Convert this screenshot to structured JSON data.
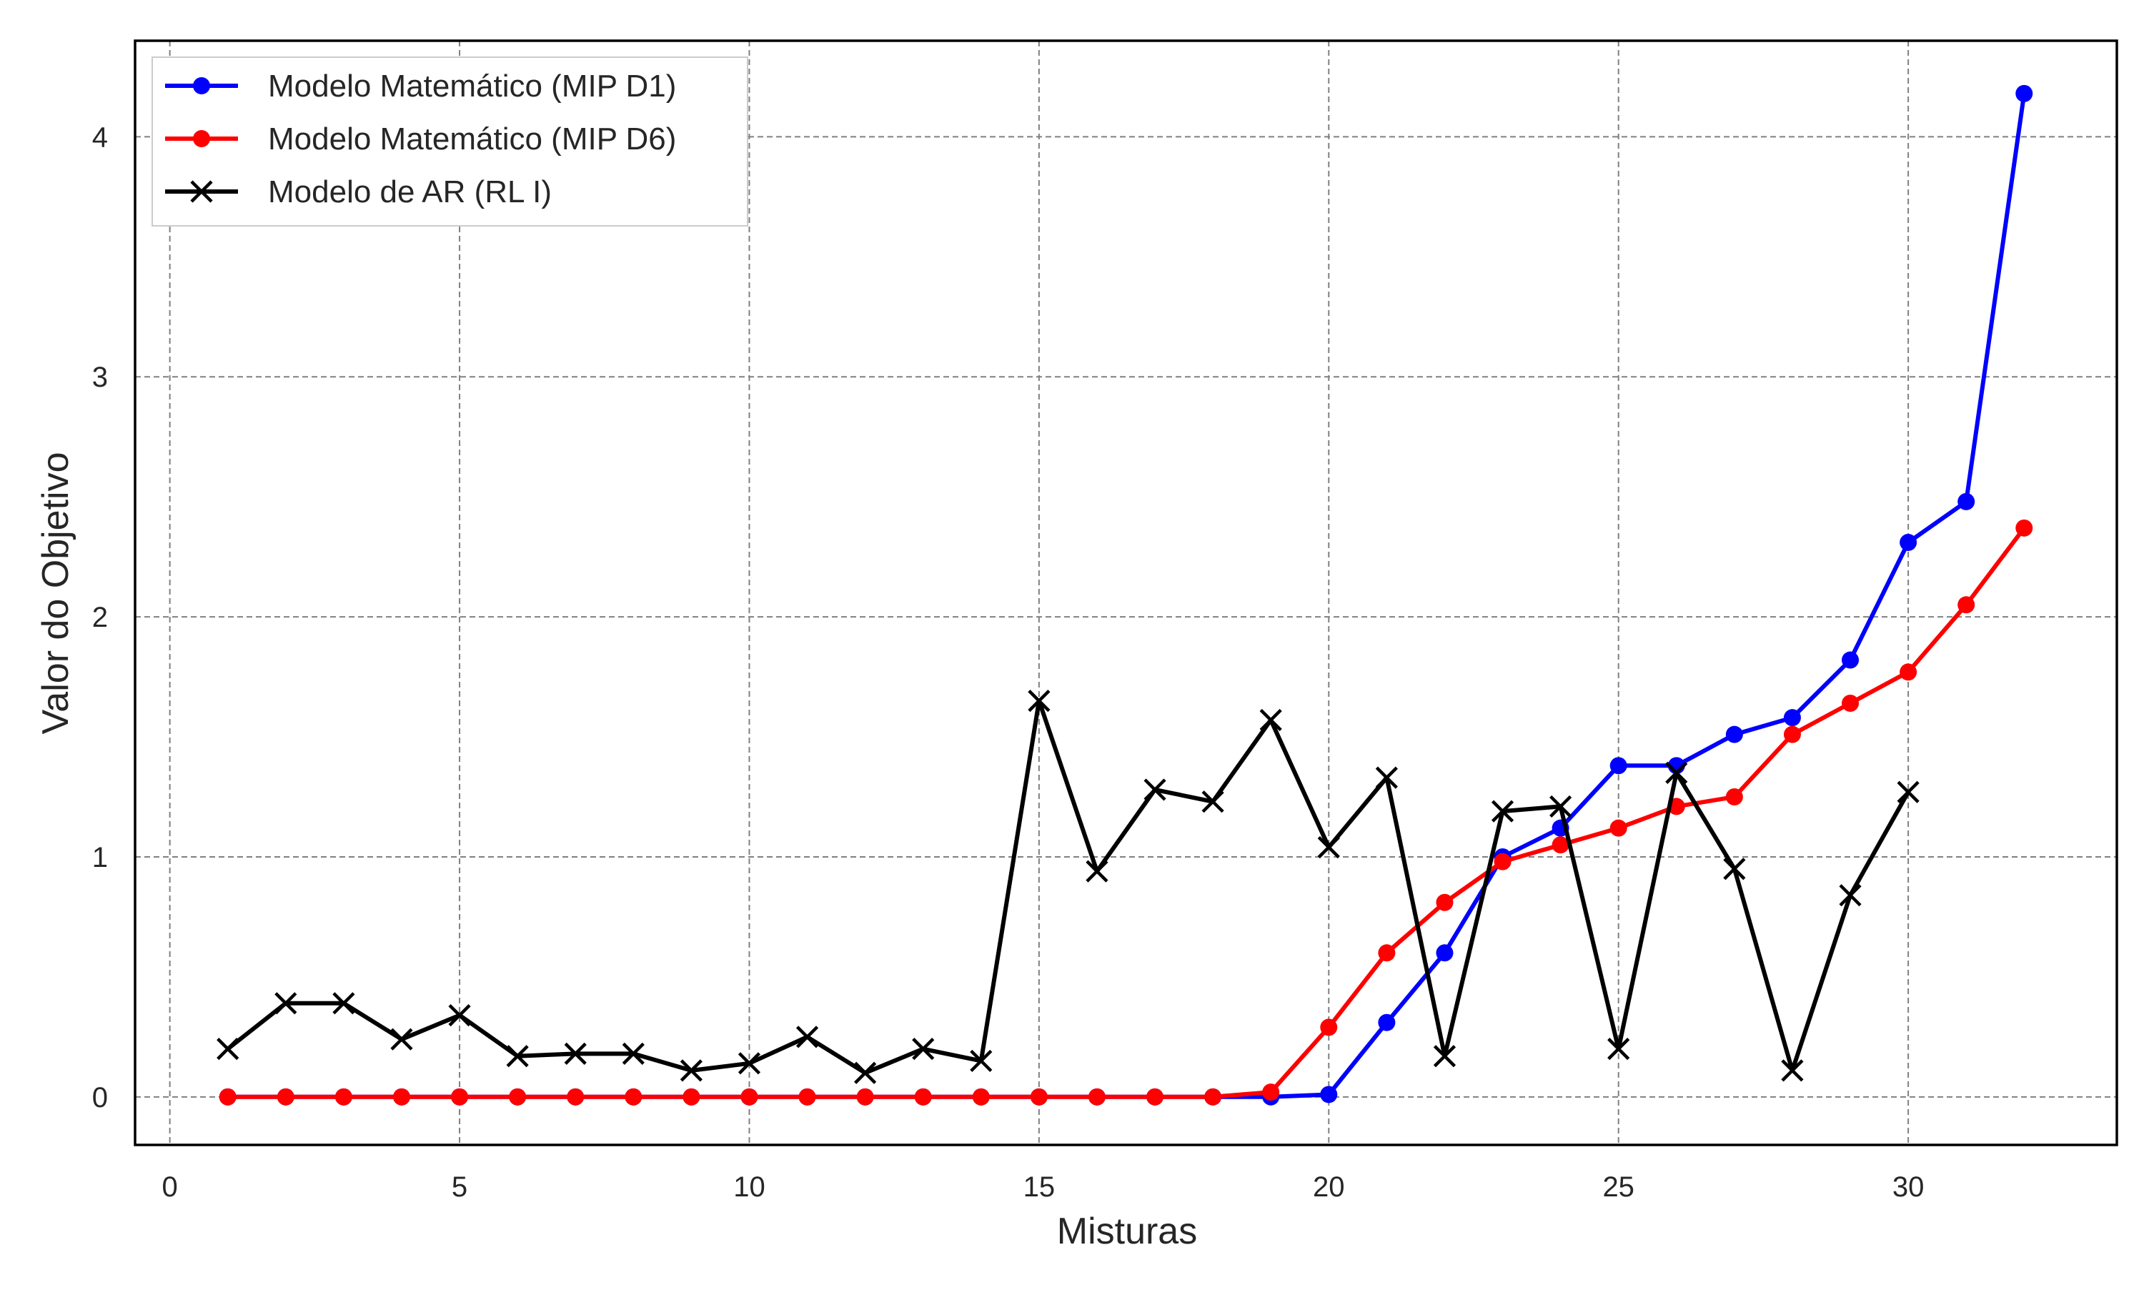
{
  "chart_data": {
    "type": "line",
    "xlabel": "Misturas",
    "ylabel": "Valor do Objetivo",
    "xlim": [
      -0.6,
      33.6
    ],
    "ylim": [
      -0.2,
      4.4
    ],
    "xticks": [
      0,
      5,
      10,
      15,
      20,
      25,
      30
    ],
    "yticks": [
      0,
      1,
      2,
      3,
      4
    ],
    "grid": true,
    "legend_position": "upper-left",
    "series": [
      {
        "name": "Modelo Matemático (MIP D1)",
        "color": "#0000ff",
        "marker": "circle",
        "x": [
          1,
          2,
          3,
          4,
          5,
          6,
          7,
          8,
          9,
          10,
          11,
          12,
          13,
          14,
          15,
          16,
          17,
          18,
          19,
          20,
          21,
          22,
          23,
          24,
          25,
          26,
          27,
          28,
          29,
          30,
          31,
          32
        ],
        "y": [
          0,
          0,
          0,
          0,
          0,
          0,
          0,
          0,
          0,
          0,
          0,
          0,
          0,
          0,
          0,
          0,
          0,
          0,
          0,
          0.01,
          0.31,
          0.6,
          1.0,
          1.12,
          1.38,
          1.38,
          1.51,
          1.58,
          1.82,
          2.31,
          2.48,
          4.18
        ]
      },
      {
        "name": "Modelo Matemático (MIP D6)",
        "color": "#ff0000",
        "marker": "circle",
        "x": [
          1,
          2,
          3,
          4,
          5,
          6,
          7,
          8,
          9,
          10,
          11,
          12,
          13,
          14,
          15,
          16,
          17,
          18,
          19,
          20,
          21,
          22,
          23,
          24,
          25,
          26,
          27,
          28,
          29,
          30,
          31,
          32
        ],
        "y": [
          0,
          0,
          0,
          0,
          0,
          0,
          0,
          0,
          0,
          0,
          0,
          0,
          0,
          0,
          0,
          0,
          0,
          0,
          0.02,
          0.29,
          0.6,
          0.81,
          0.98,
          1.05,
          1.12,
          1.21,
          1.25,
          1.51,
          1.64,
          1.77,
          2.05,
          2.37
        ]
      },
      {
        "name": "Modelo de AR (RL I)",
        "color": "#000000",
        "marker": "x",
        "x": [
          1,
          2,
          3,
          4,
          5,
          6,
          7,
          8,
          9,
          10,
          11,
          12,
          13,
          14,
          15,
          16,
          17,
          18,
          19,
          20,
          21,
          22,
          23,
          24,
          25,
          26,
          27,
          28,
          29,
          30
        ],
        "y": [
          0.2,
          0.39,
          0.39,
          0.24,
          0.34,
          0.17,
          0.18,
          0.18,
          0.11,
          0.14,
          0.25,
          0.1,
          0.2,
          0.15,
          1.65,
          0.94,
          1.28,
          1.23,
          1.57,
          1.04,
          1.33,
          0.17,
          1.19,
          1.21,
          0.2,
          1.35,
          0.95,
          0.11,
          0.84,
          1.27
        ]
      }
    ]
  }
}
